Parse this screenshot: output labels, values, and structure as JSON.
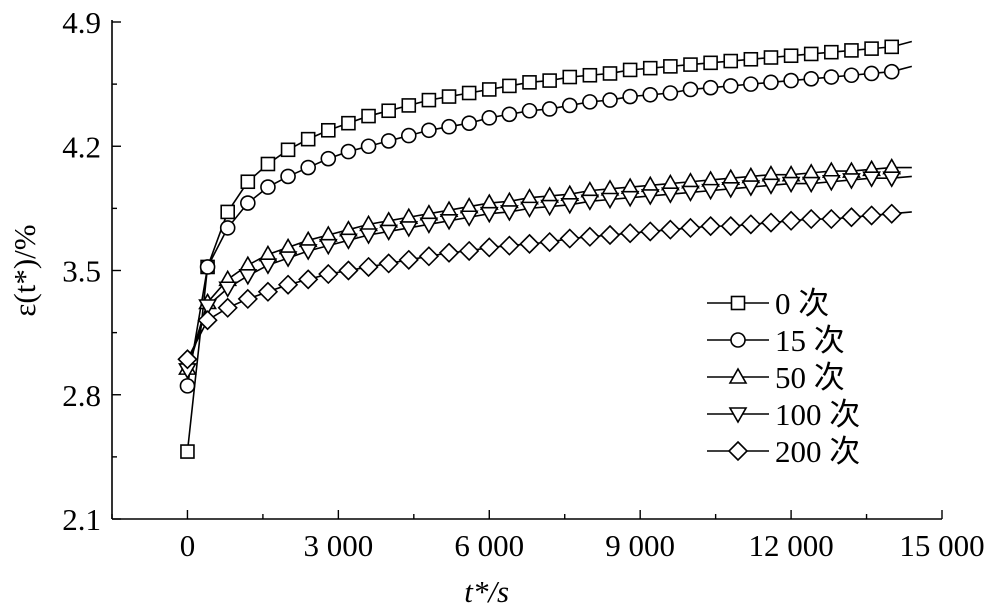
{
  "chart_data": {
    "type": "line",
    "xlabel": "t*/s",
    "ylabel": "ε(t*)/%",
    "xlim": [
      -1500,
      15000
    ],
    "ylim": [
      2.1,
      4.9
    ],
    "xticks": [
      0,
      3000,
      6000,
      9000,
      12000,
      15000
    ],
    "xtick_labels": [
      "0",
      "3 000",
      "6 000",
      "9 000",
      "12 000",
      "15 000"
    ],
    "yticks": [
      2.1,
      2.8,
      3.5,
      4.2,
      4.9
    ],
    "ytick_labels": [
      "2.1",
      "2.8",
      "3.5",
      "4.2",
      "4.9"
    ],
    "grid": false,
    "legend_position": "lower-right",
    "marker_x": [
      0,
      400,
      800,
      1200,
      1600,
      2000,
      2400,
      2800,
      3200,
      3600,
      4000,
      4400,
      4800,
      5200,
      5600,
      6000,
      6400,
      6800,
      7200,
      7600,
      8000,
      8400,
      8800,
      9200,
      9600,
      10000,
      10400,
      10800,
      11200,
      11600,
      12000,
      12400,
      12800,
      13200,
      13600,
      14000
    ],
    "series": [
      {
        "name": "0 次",
        "marker": "square",
        "line_end_x": 14400,
        "line_end_y": 4.79,
        "values": [
          2.48,
          3.52,
          3.83,
          4.0,
          4.1,
          4.18,
          4.24,
          4.29,
          4.33,
          4.37,
          4.4,
          4.43,
          4.46,
          4.48,
          4.5,
          4.52,
          4.54,
          4.56,
          4.57,
          4.59,
          4.6,
          4.61,
          4.63,
          4.64,
          4.65,
          4.66,
          4.67,
          4.68,
          4.69,
          4.7,
          4.71,
          4.72,
          4.73,
          4.74,
          4.75,
          4.76
        ]
      },
      {
        "name": "15 次",
        "marker": "circle",
        "line_end_x": 14400,
        "line_end_y": 4.65,
        "values": [
          2.85,
          3.52,
          3.74,
          3.88,
          3.97,
          4.03,
          4.08,
          4.13,
          4.17,
          4.2,
          4.23,
          4.26,
          4.29,
          4.31,
          4.33,
          4.36,
          4.38,
          4.4,
          4.41,
          4.43,
          4.45,
          4.46,
          4.48,
          4.49,
          4.5,
          4.52,
          4.53,
          4.54,
          4.55,
          4.56,
          4.57,
          4.58,
          4.59,
          4.6,
          4.61,
          4.62
        ]
      },
      {
        "name": "50 次",
        "marker": "triangle-up",
        "line_end_x": 14400,
        "line_end_y": 4.08,
        "values": [
          2.95,
          3.32,
          3.45,
          3.53,
          3.59,
          3.63,
          3.67,
          3.7,
          3.73,
          3.76,
          3.78,
          3.8,
          3.82,
          3.84,
          3.86,
          3.88,
          3.89,
          3.91,
          3.92,
          3.93,
          3.95,
          3.96,
          3.97,
          3.98,
          3.99,
          4.0,
          4.01,
          4.02,
          4.03,
          4.04,
          4.04,
          4.05,
          4.06,
          4.06,
          4.07,
          4.08
        ]
      },
      {
        "name": "100 次",
        "marker": "triangle-down",
        "line_end_x": 14400,
        "line_end_y": 4.03,
        "values": [
          2.94,
          3.3,
          3.4,
          3.47,
          3.53,
          3.57,
          3.61,
          3.64,
          3.67,
          3.7,
          3.72,
          3.74,
          3.76,
          3.78,
          3.8,
          3.82,
          3.83,
          3.85,
          3.86,
          3.87,
          3.89,
          3.9,
          3.91,
          3.92,
          3.93,
          3.94,
          3.95,
          3.96,
          3.97,
          3.98,
          3.99,
          3.99,
          4.0,
          4.01,
          4.02,
          4.02
        ]
      },
      {
        "name": "200 次",
        "marker": "diamond",
        "line_end_x": 14400,
        "line_end_y": 3.83,
        "values": [
          3.0,
          3.22,
          3.29,
          3.34,
          3.38,
          3.42,
          3.45,
          3.48,
          3.5,
          3.52,
          3.54,
          3.56,
          3.58,
          3.6,
          3.61,
          3.63,
          3.64,
          3.65,
          3.66,
          3.68,
          3.69,
          3.7,
          3.71,
          3.72,
          3.73,
          3.74,
          3.75,
          3.75,
          3.76,
          3.77,
          3.78,
          3.79,
          3.79,
          3.8,
          3.81,
          3.82
        ]
      }
    ]
  }
}
